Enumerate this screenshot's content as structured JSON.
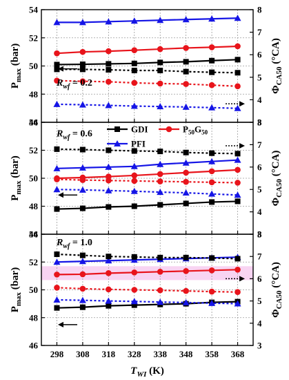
{
  "chart_data": [
    {
      "type": "line",
      "annotation_symbol": "R",
      "annotation_sub": "wf",
      "annotation_value": " = 0.2",
      "x": [
        298,
        308,
        318,
        328,
        338,
        348,
        358,
        368
      ],
      "left_ylim": [
        46,
        54
      ],
      "right_ylim": [
        3,
        8
      ],
      "left_ticks": [
        "46",
        "48",
        "50",
        "52",
        "54"
      ],
      "right_ticks": [
        "3",
        "4",
        "5",
        "6",
        "7",
        "8"
      ],
      "series": [
        {
          "key": "GDI",
          "axis": "left",
          "values": [
            50.1,
            50.12,
            50.15,
            50.18,
            50.25,
            50.3,
            50.38,
            50.45
          ]
        },
        {
          "key": "P50G50",
          "axis": "left",
          "values": [
            50.9,
            51.0,
            51.05,
            51.12,
            51.2,
            51.28,
            51.33,
            51.4
          ]
        },
        {
          "key": "PFI",
          "axis": "left",
          "values": [
            53.1,
            53.1,
            53.15,
            53.2,
            53.25,
            53.3,
            53.35,
            53.4
          ]
        },
        {
          "key": "GDI",
          "axis": "right",
          "values": [
            5.35,
            5.35,
            5.33,
            5.3,
            5.3,
            5.25,
            5.22,
            5.2
          ]
        },
        {
          "key": "P50G50",
          "axis": "right",
          "values": [
            4.85,
            4.82,
            4.8,
            4.75,
            4.72,
            4.7,
            4.65,
            4.6
          ]
        },
        {
          "key": "PFI",
          "axis": "right",
          "values": [
            3.8,
            3.78,
            3.75,
            3.72,
            3.7,
            3.68,
            3.65,
            3.62
          ]
        }
      ],
      "arrows": [
        {
          "dir": "left",
          "axis": "left",
          "at": 49.8
        },
        {
          "dir": "right",
          "axis": "right",
          "at": 3.82
        }
      ]
    },
    {
      "type": "line",
      "annotation_symbol": "R",
      "annotation_sub": "wf",
      "annotation_value": " = 0.6",
      "x": [
        298,
        308,
        318,
        328,
        338,
        348,
        358,
        368
      ],
      "left_ylim": [
        46,
        54
      ],
      "right_ylim": [
        3,
        8
      ],
      "left_ticks": [
        "46",
        "48",
        "50",
        "52",
        "54"
      ],
      "right_ticks": [
        "3",
        "4",
        "5",
        "6",
        "7",
        "8"
      ],
      "series": [
        {
          "key": "GDI",
          "axis": "left",
          "values": [
            47.8,
            47.85,
            47.95,
            48.0,
            48.1,
            48.2,
            48.3,
            48.35
          ]
        },
        {
          "key": "P50G50",
          "axis": "left",
          "values": [
            50.0,
            50.05,
            50.12,
            50.2,
            50.3,
            50.4,
            50.5,
            50.6
          ]
        },
        {
          "key": "PFI",
          "axis": "left",
          "values": [
            50.7,
            50.75,
            50.8,
            50.85,
            51.0,
            51.1,
            51.2,
            51.3
          ]
        },
        {
          "key": "GDI",
          "axis": "right",
          "values": [
            6.8,
            6.78,
            6.75,
            6.72,
            6.7,
            6.65,
            6.62,
            6.6
          ]
        },
        {
          "key": "P50G50",
          "axis": "right",
          "values": [
            5.45,
            5.42,
            5.4,
            5.38,
            5.36,
            5.34,
            5.32,
            5.3
          ]
        },
        {
          "key": "PFI",
          "axis": "right",
          "values": [
            5.0,
            4.98,
            4.95,
            4.92,
            4.88,
            4.85,
            4.8,
            4.75
          ]
        }
      ],
      "arrows": [
        {
          "dir": "left",
          "axis": "left",
          "at": 48.8
        },
        {
          "dir": "right",
          "axis": "right",
          "at": 6.95
        }
      ]
    },
    {
      "type": "line",
      "annotation_symbol": "R",
      "annotation_sub": "wf",
      "annotation_value": " = 1.0",
      "x": [
        298,
        308,
        318,
        328,
        338,
        348,
        358,
        368
      ],
      "left_ylim": [
        46,
        54
      ],
      "right_ylim": [
        3,
        8
      ],
      "left_ticks": [
        "46",
        "48",
        "50",
        "52",
        "54"
      ],
      "right_ticks": [
        "3",
        "4",
        "5",
        "6",
        "7",
        "8"
      ],
      "series": [
        {
          "key": "GDI",
          "axis": "left",
          "values": [
            48.7,
            48.75,
            48.85,
            48.9,
            48.95,
            49.0,
            49.1,
            49.15
          ]
        },
        {
          "key": "P50G50",
          "axis": "left",
          "values": [
            51.1,
            51.12,
            51.2,
            51.25,
            51.3,
            51.35,
            51.4,
            51.45
          ]
        },
        {
          "key": "PFI",
          "axis": "left",
          "values": [
            52.0,
            52.05,
            52.1,
            52.15,
            52.2,
            52.25,
            52.3,
            52.35
          ]
        },
        {
          "key": "GDI",
          "axis": "right",
          "values": [
            7.1,
            7.05,
            7.0,
            6.98,
            6.95,
            6.95,
            6.93,
            6.9
          ]
        },
        {
          "key": "P50G50",
          "axis": "right",
          "values": [
            5.6,
            5.55,
            5.52,
            5.5,
            5.48,
            5.45,
            5.42,
            5.4
          ]
        },
        {
          "key": "PFI",
          "axis": "right",
          "values": [
            5.05,
            5.03,
            5.0,
            4.98,
            4.95,
            4.93,
            4.9,
            4.88
          ]
        }
      ],
      "arrows": [
        {
          "dir": "left",
          "axis": "left",
          "at": 47.5
        },
        {
          "dir": "right",
          "axis": "right",
          "at": 6.0
        }
      ]
    }
  ],
  "legend": {
    "items": [
      {
        "key": "GDI",
        "label": "GDI",
        "marker": "square",
        "color": "#000000"
      },
      {
        "key": "P50G50",
        "label_parts": [
          "P",
          "50",
          "G",
          "50"
        ],
        "marker": "circle",
        "color": "#e8141b"
      },
      {
        "key": "PFI",
        "label": "PFI",
        "marker": "triangle",
        "color": "#1515e6"
      }
    ]
  },
  "axes": {
    "xlabel_symbol": "T",
    "xlabel_sub": "WI",
    "xlabel_unit": " (K)",
    "ylabel_left_main": "P",
    "ylabel_left_sub": "max",
    "ylabel_left_unit": " (bar)",
    "ylabel_right_main": "Φ",
    "ylabel_right_sub": "CA50",
    "ylabel_right_unit": " (°CA)",
    "x_ticks": [
      "298",
      "308",
      "318",
      "328",
      "338",
      "348",
      "358",
      "368"
    ]
  },
  "colors": {
    "GDI": "#000000",
    "P50G50": "#e8141b",
    "PFI": "#1515e6",
    "highlight": "#f6c6ee"
  },
  "highlight_band": {
    "panel": 2,
    "axis": "left",
    "from": 50.7,
    "to": 51.7
  }
}
